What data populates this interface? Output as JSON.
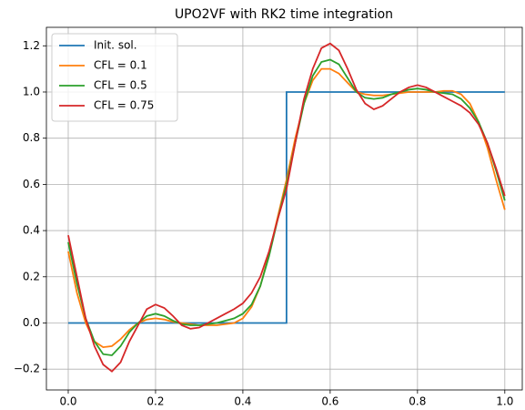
{
  "chart_data": {
    "type": "line",
    "title": "UPO2VF with RK2 time integration",
    "x": [
      0,
      0.02,
      0.04,
      0.06,
      0.08,
      0.1,
      0.12,
      0.14,
      0.16,
      0.18,
      0.2,
      0.22,
      0.24,
      0.26,
      0.28,
      0.3,
      0.32,
      0.34,
      0.36,
      0.38,
      0.4,
      0.42,
      0.44,
      0.46,
      0.48,
      0.5,
      0.52,
      0.54,
      0.56,
      0.58,
      0.6,
      0.62,
      0.64,
      0.66,
      0.68,
      0.7,
      0.72,
      0.74,
      0.76,
      0.78,
      0.8,
      0.82,
      0.84,
      0.86,
      0.88,
      0.9,
      0.92,
      0.94,
      0.96,
      0.98,
      1.0
    ],
    "series": [
      {
        "name": "Init. sol.",
        "color": "#1f77b4",
        "x": [
          0,
          0.5,
          0.5,
          1.0
        ],
        "values": [
          0,
          0,
          1,
          1
        ]
      },
      {
        "name": "CFL = 0.1",
        "color": "#ff7f0e",
        "values": [
          0.31,
          0.13,
          0.0,
          -0.08,
          -0.105,
          -0.1,
          -0.07,
          -0.03,
          0.0,
          0.015,
          0.02,
          0.015,
          0.005,
          0.0,
          -0.005,
          -0.01,
          -0.01,
          -0.01,
          -0.005,
          0.0,
          0.02,
          0.07,
          0.16,
          0.3,
          0.46,
          0.62,
          0.8,
          0.95,
          1.05,
          1.1,
          1.1,
          1.08,
          1.04,
          1.0,
          0.99,
          0.985,
          0.985,
          0.99,
          0.995,
          1.0,
          1.0,
          1.0,
          1.0,
          1.005,
          1.005,
          0.99,
          0.95,
          0.87,
          0.76,
          0.62,
          0.49
        ]
      },
      {
        "name": "CFL = 0.5",
        "color": "#2ca02c",
        "values": [
          0.35,
          0.17,
          0.02,
          -0.08,
          -0.135,
          -0.14,
          -0.1,
          -0.04,
          0.0,
          0.03,
          0.04,
          0.03,
          0.01,
          -0.005,
          -0.01,
          -0.01,
          -0.005,
          0.0,
          0.01,
          0.02,
          0.04,
          0.08,
          0.16,
          0.29,
          0.45,
          0.6,
          0.78,
          0.95,
          1.07,
          1.13,
          1.14,
          1.12,
          1.06,
          1.0,
          0.975,
          0.97,
          0.975,
          0.99,
          1.0,
          1.01,
          1.015,
          1.01,
          1.0,
          0.995,
          0.99,
          0.97,
          0.93,
          0.87,
          0.78,
          0.66,
          0.53
        ]
      },
      {
        "name": "CFL = 0.75",
        "color": "#d62728",
        "values": [
          0.38,
          0.2,
          0.02,
          -0.1,
          -0.18,
          -0.21,
          -0.17,
          -0.08,
          -0.01,
          0.06,
          0.08,
          0.065,
          0.03,
          -0.01,
          -0.025,
          -0.02,
          0.0,
          0.02,
          0.04,
          0.06,
          0.085,
          0.13,
          0.2,
          0.31,
          0.45,
          0.58,
          0.78,
          0.97,
          1.1,
          1.19,
          1.21,
          1.18,
          1.1,
          1.01,
          0.95,
          0.925,
          0.94,
          0.97,
          1.0,
          1.02,
          1.03,
          1.02,
          1.0,
          0.98,
          0.96,
          0.94,
          0.91,
          0.86,
          0.78,
          0.67,
          0.55
        ]
      }
    ],
    "xlim": [
      -0.05,
      1.04
    ],
    "ylim": [
      -0.29,
      1.28
    ],
    "xticks": [
      {
        "value": 0,
        "label": "0.0"
      },
      {
        "value": 0.2,
        "label": "0.2"
      },
      {
        "value": 0.4,
        "label": "0.4"
      },
      {
        "value": 0.6,
        "label": "0.6"
      },
      {
        "value": 0.8,
        "label": "0.8"
      },
      {
        "value": 1,
        "label": "1.0"
      }
    ],
    "yticks": [
      {
        "value": -0.2,
        "label": "−0.2"
      },
      {
        "value": 0,
        "label": "0.0"
      },
      {
        "value": 0.2,
        "label": "0.2"
      },
      {
        "value": 0.4,
        "label": "0.4"
      },
      {
        "value": 0.6,
        "label": "0.6"
      },
      {
        "value": 0.8,
        "label": "0.8"
      },
      {
        "value": 1,
        "label": "1.0"
      },
      {
        "value": 1.2,
        "label": "1.2"
      }
    ],
    "grid": true,
    "legend": "upper-left"
  }
}
